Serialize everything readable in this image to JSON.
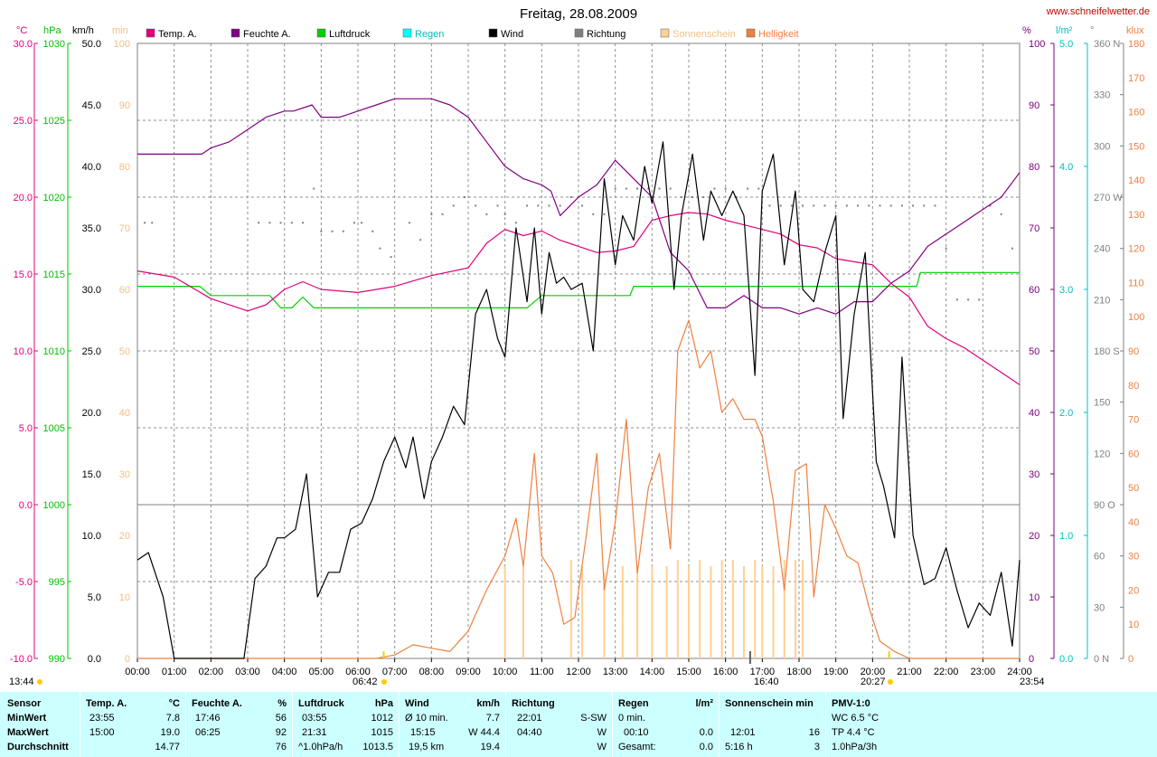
{
  "header": {
    "title": "Freitag, 28.08.2009",
    "website": "www.schneifelwetter.de"
  },
  "axes": {
    "temp": {
      "unit": "°C",
      "ticks": [
        "30.0",
        "25.0",
        "20.0",
        "15.0",
        "10.0",
        "5.0",
        "0.0",
        "-5.0",
        "-10.0"
      ],
      "color": "#e0007f"
    },
    "pressure": {
      "unit": "hPa",
      "ticks": [
        "1030",
        "1025",
        "1020",
        "1015",
        "1010",
        "1005",
        "1000",
        "995",
        "990"
      ],
      "color": "#00c000"
    },
    "wind": {
      "unit": "km/h",
      "ticks": [
        "50.0",
        "45.0",
        "40.0",
        "35.0",
        "30.0",
        "25.0",
        "20.0",
        "15.0",
        "10.0",
        "5.0",
        "0.0"
      ],
      "color": "#000000"
    },
    "sun": {
      "unit": "min",
      "ticks": [
        "100",
        "90",
        "80",
        "70",
        "60",
        "50",
        "40",
        "30",
        "20",
        "10",
        "0"
      ],
      "color": "#f0c080"
    },
    "humidity": {
      "unit": "%",
      "ticks": [
        "100",
        "90",
        "80",
        "70",
        "60",
        "50",
        "40",
        "30",
        "20",
        "10",
        "0"
      ],
      "color": "#800080"
    },
    "rain": {
      "unit": "l/m²",
      "ticks": [
        "5.0",
        "4.0",
        "3.0",
        "2.0",
        "1.0",
        "0.0"
      ],
      "color": "#00c0c0"
    },
    "direction": {
      "unit": "°",
      "ticks": [
        "360 N",
        "330",
        "300",
        "270 W",
        "240",
        "210",
        "180 S",
        "150",
        "120",
        "90 O",
        "60",
        "30",
        "0 N"
      ],
      "color": "#808080"
    },
    "lux": {
      "unit": "klux",
      "ticks": [
        "180",
        "170",
        "160",
        "150",
        "140",
        "130",
        "120",
        "110",
        "100",
        "90",
        "80",
        "70",
        "60",
        "50",
        "40",
        "30",
        "20",
        "10",
        "0"
      ],
      "color": "#f08040"
    }
  },
  "x_axis": {
    "ticks": [
      "00:00",
      "01:00",
      "02:00",
      "03:00",
      "04:00",
      "05:00",
      "06:00",
      "07:00",
      "08:00",
      "09:00",
      "10:00",
      "11:00",
      "12:00",
      "13:00",
      "14:00",
      "15:00",
      "16:00",
      "17:00",
      "18:00",
      "19:00",
      "20:00",
      "21:00",
      "22:00",
      "23:00",
      "24:00"
    ],
    "time_start": "13:44",
    "sunrise": "06:42",
    "noon": "16:40",
    "sunset": "20:27",
    "time_end": "23:54"
  },
  "legend": [
    {
      "label": "Temp. A.",
      "color": "#e0007f"
    },
    {
      "label": "Feuchte A.",
      "color": "#800080"
    },
    {
      "label": "Luftdruck",
      "color": "#00d000"
    },
    {
      "label": "Regen",
      "color": "#00ffff"
    },
    {
      "label": "Wind",
      "color": "#000000"
    },
    {
      "label": "Richtung",
      "color": "#808080"
    },
    {
      "label": "Sonnenschein",
      "color": "#ffd090"
    },
    {
      "label": "Helligkeit",
      "color": "#f08040"
    }
  ],
  "chart_data": {
    "type": "line",
    "x_unit": "hour of day",
    "series": [
      {
        "name": "Temp. A.",
        "unit": "°C",
        "color": "#e0007f",
        "x": [
          0,
          1,
          2,
          3,
          3.5,
          4,
          4.5,
          5,
          6,
          7,
          8,
          9,
          9.5,
          10,
          10.5,
          11,
          11.5,
          12,
          12.5,
          13,
          13.5,
          14,
          14.5,
          15,
          15.5,
          16,
          16.5,
          17,
          17.5,
          18,
          18.5,
          19,
          19.5,
          20,
          20.5,
          21,
          21.5,
          22,
          22.5,
          23,
          23.5,
          24
        ],
        "y": [
          15.2,
          14.8,
          13.4,
          12.6,
          13.0,
          14.0,
          14.5,
          14.0,
          13.8,
          14.2,
          14.9,
          15.4,
          17.0,
          17.9,
          17.5,
          17.8,
          17.2,
          16.8,
          16.4,
          16.5,
          16.8,
          18.5,
          18.8,
          19.0,
          18.9,
          18.5,
          18.2,
          17.9,
          17.6,
          16.9,
          16.7,
          16.0,
          15.8,
          15.6,
          14.4,
          13.5,
          11.6,
          10.8,
          10.2,
          9.4,
          8.6,
          7.8
        ]
      },
      {
        "name": "Feuchte A.",
        "unit": "%",
        "color": "#800080",
        "x": [
          0,
          1,
          1.75,
          2,
          2.5,
          3,
          3.5,
          4,
          4.25,
          4.75,
          5,
          5.5,
          6,
          6.5,
          7,
          7.5,
          8,
          8.5,
          9,
          9.5,
          10,
          10.5,
          11,
          11.25,
          11.5,
          12,
          12.5,
          13,
          13.5,
          14,
          14.5,
          15,
          15.5,
          16,
          16.5,
          17,
          17.5,
          18,
          18.5,
          19,
          19.5,
          20,
          20.5,
          21,
          21.5,
          22,
          22.5,
          23,
          23.5,
          24
        ],
        "y": [
          82,
          82,
          82,
          83,
          84,
          86,
          88,
          89,
          89,
          90,
          88,
          88,
          89,
          90,
          91,
          91,
          91,
          90,
          88,
          84,
          80,
          78,
          77,
          76,
          72,
          75,
          77,
          81,
          78,
          75,
          66,
          63,
          57,
          57,
          59,
          57,
          57,
          56,
          57,
          56,
          58,
          58,
          61,
          63,
          67,
          69,
          71,
          73,
          75,
          79
        ]
      },
      {
        "name": "Luftdruck",
        "unit": "hPa",
        "color": "#00d000",
        "x": [
          0,
          1.7,
          2,
          3.6,
          3.9,
          4.2,
          4.5,
          4.8,
          5,
          10,
          10.6,
          11,
          13,
          13.4,
          13.5,
          21.2,
          21.3,
          24
        ],
        "y": [
          1014.2,
          1014.2,
          1013.6,
          1013.6,
          1012.8,
          1012.8,
          1013.5,
          1012.8,
          1012.8,
          1012.8,
          1012.8,
          1013.6,
          1013.6,
          1013.6,
          1014.2,
          1014.2,
          1015.1,
          1015.1
        ]
      },
      {
        "name": "Wind",
        "unit": "km/h",
        "color": "#000000",
        "x": [
          0,
          0.3,
          0.7,
          1.0,
          2.9,
          3.2,
          3.5,
          3.8,
          4.0,
          4.3,
          4.6,
          4.9,
          5.2,
          5.5,
          5.8,
          6.1,
          6.4,
          6.7,
          7.0,
          7.3,
          7.5,
          7.8,
          8.0,
          8.3,
          8.6,
          8.9,
          9.2,
          9.5,
          9.8,
          10.0,
          10.3,
          10.6,
          10.8,
          11.0,
          11.2,
          11.4,
          11.6,
          11.8,
          12.1,
          12.4,
          12.7,
          13.0,
          13.2,
          13.5,
          13.8,
          14.0,
          14.3,
          14.6,
          14.8,
          15.1,
          15.4,
          15.6,
          15.9,
          16.2,
          16.5,
          16.8,
          17.0,
          17.3,
          17.6,
          17.9,
          18.1,
          18.4,
          18.7,
          19.0,
          19.2,
          19.5,
          19.8,
          20.1,
          20.3,
          20.6,
          20.8,
          21.1,
          21.4,
          21.7,
          22.0,
          22.3,
          22.6,
          22.9,
          23.2,
          23.5,
          23.8,
          24.0
        ],
        "y": [
          8.0,
          8.6,
          5.0,
          0.0,
          0.0,
          6.5,
          7.5,
          9.8,
          9.8,
          10.5,
          15.0,
          5.0,
          7.0,
          7.0,
          10.5,
          11.0,
          13.0,
          16.0,
          18.0,
          15.5,
          18.0,
          13.0,
          16.0,
          18.0,
          20.5,
          19.0,
          28.0,
          30.0,
          26.0,
          24.5,
          35.0,
          29.0,
          35.0,
          28.0,
          33.0,
          30.5,
          31.0,
          30.0,
          30.5,
          25.0,
          39.0,
          32.0,
          36.0,
          34.0,
          40.0,
          37.0,
          42.0,
          30.0,
          36.0,
          41.0,
          34.0,
          38.0,
          36.0,
          38.0,
          36.0,
          23.0,
          38.0,
          41.0,
          32.0,
          38.0,
          30.0,
          29.0,
          33.0,
          36.0,
          19.5,
          28.0,
          33.0,
          16.0,
          14.0,
          9.8,
          24.5,
          10.0,
          6.0,
          6.5,
          9.0,
          5.5,
          2.5,
          4.5,
          3.5,
          7.0,
          1.0,
          8.0
        ]
      },
      {
        "name": "Helligkeit",
        "unit": "klux",
        "color": "#f08040",
        "x": [
          0,
          6.5,
          7,
          7.5,
          8,
          8.5,
          9,
          9.5,
          10,
          10.3,
          10.5,
          10.8,
          11,
          11.3,
          11.6,
          11.9,
          12.2,
          12.5,
          12.7,
          13,
          13.3,
          13.6,
          13.9,
          14.2,
          14.5,
          14.7,
          15,
          15.3,
          15.6,
          15.9,
          16.2,
          16.5,
          16.8,
          17,
          17.3,
          17.6,
          17.9,
          18.2,
          18.4,
          18.7,
          19,
          19.3,
          19.6,
          19.9,
          20.2,
          20.6,
          21,
          24
        ],
        "y": [
          0,
          0,
          1,
          4,
          3,
          2,
          8,
          20,
          30,
          41,
          27,
          60,
          30,
          25,
          10,
          12,
          35,
          60,
          20,
          40,
          70,
          25,
          50,
          60,
          32,
          90,
          99,
          85,
          90,
          72,
          76,
          70,
          70,
          65,
          46,
          20,
          55,
          57,
          18,
          45,
          38,
          30,
          28,
          15,
          5,
          2,
          0,
          0
        ]
      },
      {
        "name": "Sonnenschein",
        "unit": "min",
        "color": "#ffd090",
        "type": "bar",
        "x": [
          10,
          10.5,
          11.8,
          12.1,
          12.7,
          13.2,
          13.6,
          14.0,
          14.4,
          14.7,
          15.0,
          15.3,
          15.6,
          15.9,
          16.2,
          16.5,
          16.8,
          17.0,
          17.3,
          17.6,
          17.9,
          18.1
        ],
        "y": [
          15,
          15,
          16,
          15,
          14,
          15,
          15,
          15,
          15,
          16,
          15,
          16,
          15,
          16,
          16,
          15,
          16,
          15,
          15,
          16,
          16,
          16
        ]
      },
      {
        "name": "Richtung",
        "unit": "°",
        "color": "#808080",
        "type": "scatter",
        "x": [
          0.2,
          0.4,
          3.3,
          3.6,
          3.9,
          4.2,
          4.5,
          4.8,
          5.0,
          5.3,
          5.6,
          5.9,
          6.1,
          6.4,
          6.6,
          6.9,
          7.4,
          7.7,
          8.0,
          8.3,
          8.6,
          8.9,
          9.2,
          9.5,
          9.8,
          10.0,
          10.3,
          10.6,
          10.9,
          11.2,
          11.5,
          11.8,
          12.1,
          12.4,
          12.7,
          13.0,
          13.3,
          13.6,
          13.9,
          14.2,
          14.5,
          14.8,
          15.1,
          15.4,
          15.7,
          16.0,
          16.3,
          16.6,
          16.9,
          17.2,
          17.5,
          17.8,
          18.1,
          18.4,
          18.7,
          19.0,
          19.3,
          19.6,
          19.9,
          20.2,
          20.5,
          20.8,
          21.1,
          21.4,
          21.7,
          22.0,
          22.3,
          22.6,
          22.9,
          23.2,
          23.5,
          23.8
        ],
        "y": [
          255,
          255,
          255,
          255,
          255,
          255,
          255,
          275,
          250,
          250,
          250,
          255,
          255,
          250,
          240,
          235,
          255,
          245,
          260,
          260,
          265,
          270,
          265,
          260,
          265,
          260,
          255,
          265,
          265,
          265,
          265,
          270,
          265,
          260,
          260,
          275,
          275,
          275,
          275,
          275,
          275,
          270,
          270,
          270,
          275,
          275,
          270,
          275,
          275,
          265,
          265,
          265,
          265,
          265,
          265,
          265,
          265,
          265,
          265,
          265,
          265,
          265,
          265,
          265,
          265,
          240,
          210,
          210,
          210,
          265,
          260,
          240
        ]
      }
    ]
  },
  "stats": {
    "sensor": {
      "label": "Sensor",
      "rows": [
        "MinWert",
        "MaxWert",
        "Durchschnitt"
      ]
    },
    "temp": {
      "label": "Temp. A.",
      "unit": "°C",
      "times": [
        "23:55",
        "15:00",
        ""
      ],
      "values": [
        "7.8",
        "19.0",
        "14.77"
      ]
    },
    "humidity": {
      "label": "Feuchte A.",
      "unit": "%",
      "times": [
        "17:46",
        "06:25",
        ""
      ],
      "values": [
        "56",
        "92",
        "76"
      ]
    },
    "pressure": {
      "label": "Luftdruck",
      "unit": "hPa",
      "times": [
        "03:55",
        "21:31",
        "^1.0hPa/h"
      ],
      "values": [
        "1012",
        "1015",
        "1013.5"
      ]
    },
    "wind": {
      "label": "Wind",
      "unit": "km/h",
      "times": [
        "Ø 10 min.",
        "15:15",
        "19,5 km"
      ],
      "values": [
        "7.7",
        "W 44.4",
        "19.4"
      ]
    },
    "direction": {
      "label": "Richtung",
      "times": [
        "22:01",
        "04:40",
        ""
      ],
      "values": [
        "S-SW",
        "W",
        "W"
      ]
    },
    "rain": {
      "label": "Regen",
      "unit": "l/m²",
      "times": [
        "0 min.",
        "00:10",
        "Gesamt:"
      ],
      "values": [
        "",
        "0.0",
        "0.0"
      ]
    },
    "sunshine": {
      "label": "Sonnenschein min",
      "times": [
        "",
        "12:01",
        "5:16 h"
      ],
      "values": [
        "",
        "16",
        "3"
      ]
    },
    "pmv": {
      "label": "PMV-1:0",
      "rows": [
        "WC 6.5 °C",
        "TP 4.4 °C",
        "1.0hPa/3h"
      ]
    }
  }
}
